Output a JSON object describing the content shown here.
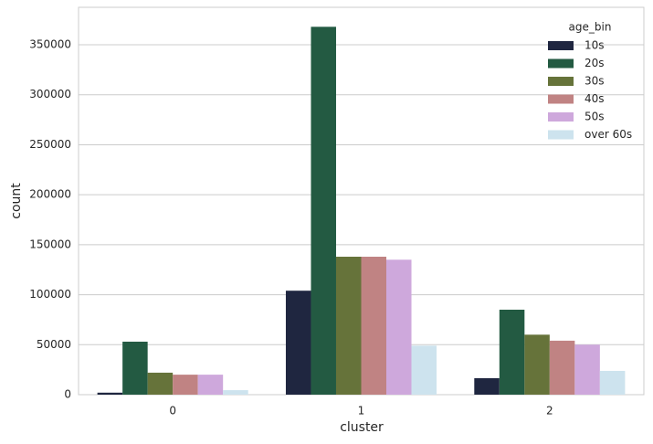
{
  "chart_data": {
    "type": "bar",
    "x_label": "cluster",
    "y_label": "count",
    "categories": [
      "0",
      "1",
      "2"
    ],
    "legend_title": "age_bin",
    "legend_position": "upper right",
    "series": [
      {
        "name": "10s",
        "color": "#1f2640",
        "values": [
          2000,
          104000,
          16500
        ]
      },
      {
        "name": "20s",
        "color": "#235a42",
        "values": [
          53000,
          368000,
          85000
        ]
      },
      {
        "name": "30s",
        "color": "#66733a",
        "values": [
          22000,
          138000,
          60000
        ]
      },
      {
        "name": "40s",
        "color": "#c08383",
        "values": [
          20000,
          138000,
          54000
        ]
      },
      {
        "name": "50s",
        "color": "#cea8dc",
        "values": [
          20000,
          135000,
          50000
        ]
      },
      {
        "name": "over 60s",
        "color": "#cde3ee",
        "values": [
          4500,
          49000,
          23800
        ]
      }
    ],
    "ylim": [
      0,
      387500
    ],
    "yticks": [
      0,
      50000,
      100000,
      150000,
      200000,
      250000,
      300000,
      350000
    ],
    "grid": true
  }
}
